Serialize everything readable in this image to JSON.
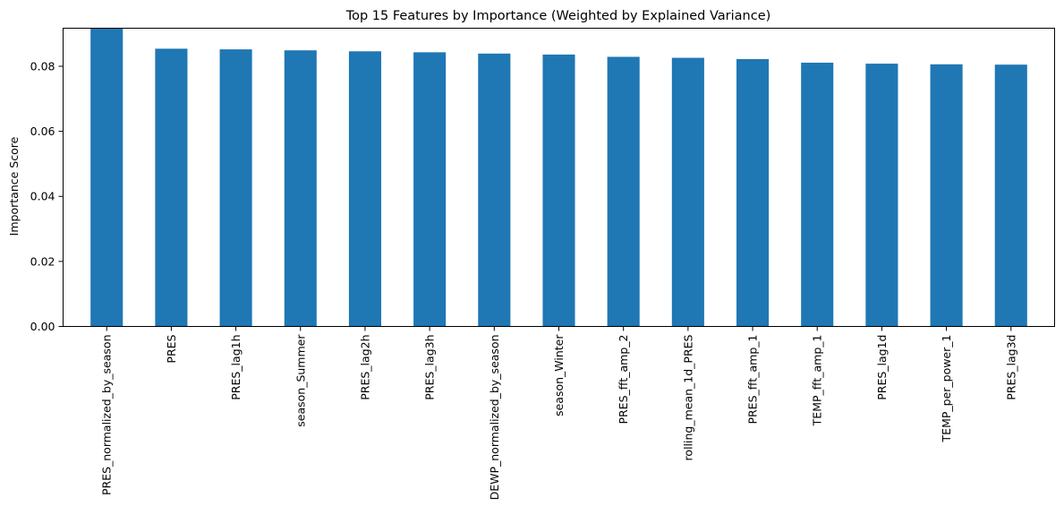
{
  "chart_data": {
    "type": "bar",
    "title": "Top 15 Features by Importance (Weighted by Explained Variance)",
    "xlabel": "",
    "ylabel": "Importance Score",
    "categories": [
      "PRES_normalized_by_season",
      "PRES",
      "PRES_lag1h",
      "season_Summer",
      "PRES_lag2h",
      "PRES_lag3h",
      "DEWP_normalized_by_season",
      "season_Winter",
      "PRES_fft_amp_2",
      "rolling_mean_1d_PRES",
      "PRES_fft_amp_1",
      "TEMP_fft_amp_1",
      "PRES_lag1d",
      "TEMP_per_power_1",
      "PRES_lag3d"
    ],
    "values": [
      0.0917,
      0.0854,
      0.0852,
      0.0849,
      0.0846,
      0.0843,
      0.0839,
      0.0836,
      0.0829,
      0.0826,
      0.0822,
      0.0811,
      0.0808,
      0.0806,
      0.0805
    ],
    "ylim": [
      0,
      0.0917
    ],
    "yticks": [
      "0.00",
      "0.02",
      "0.04",
      "0.06",
      "0.08"
    ],
    "bar_color": "#1f77b4",
    "grid": false,
    "legend": "none"
  }
}
